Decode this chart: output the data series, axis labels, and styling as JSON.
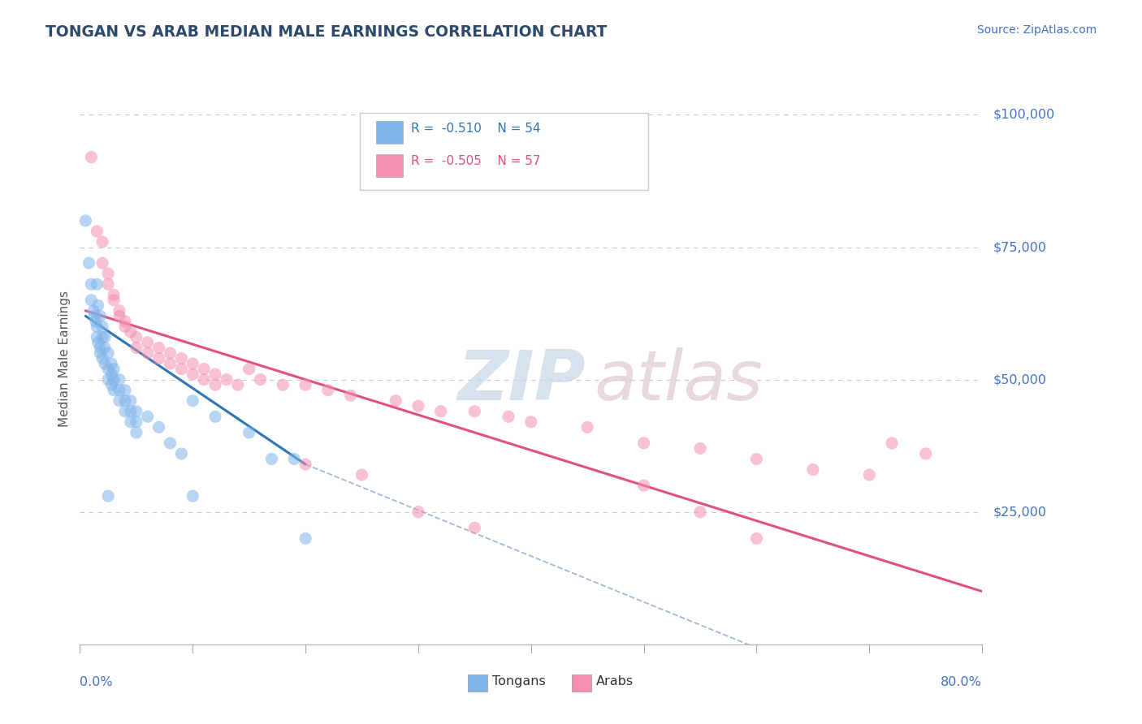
{
  "title": "TONGAN VS ARAB MEDIAN MALE EARNINGS CORRELATION CHART",
  "source_text": "Source: ZipAtlas.com",
  "ylabel": "Median Male Earnings",
  "yticks": [
    0,
    25000,
    50000,
    75000,
    100000
  ],
  "ytick_labels": [
    "",
    "$25,000",
    "$50,000",
    "$75,000",
    "$100,000"
  ],
  "xmin": 0.0,
  "xmax": 0.8,
  "ymin": 0,
  "ymax": 108000,
  "tongan_color": "#7eb4ea",
  "arab_color": "#f48fb1",
  "tongan_line_color": "#2e75b6",
  "arab_line_color": "#e05080",
  "dashed_line_color": "#a0b8d8",
  "title_color": "#2e4a6b",
  "axis_label_color": "#4472c4",
  "source_color": "#4472c4",
  "background_color": "#ffffff",
  "grid_color": "#cccccc",
  "tongan_scatter": [
    [
      0.005,
      80000
    ],
    [
      0.008,
      72000
    ],
    [
      0.01,
      68000
    ],
    [
      0.01,
      65000
    ],
    [
      0.012,
      63000
    ],
    [
      0.013,
      62000
    ],
    [
      0.014,
      61000
    ],
    [
      0.015,
      68000
    ],
    [
      0.015,
      60000
    ],
    [
      0.015,
      58000
    ],
    [
      0.016,
      64000
    ],
    [
      0.016,
      57000
    ],
    [
      0.018,
      62000
    ],
    [
      0.018,
      56000
    ],
    [
      0.018,
      55000
    ],
    [
      0.02,
      60000
    ],
    [
      0.02,
      58000
    ],
    [
      0.02,
      54000
    ],
    [
      0.022,
      58000
    ],
    [
      0.022,
      56000
    ],
    [
      0.022,
      53000
    ],
    [
      0.025,
      55000
    ],
    [
      0.025,
      52000
    ],
    [
      0.025,
      50000
    ],
    [
      0.028,
      53000
    ],
    [
      0.028,
      51000
    ],
    [
      0.028,
      49000
    ],
    [
      0.03,
      52000
    ],
    [
      0.03,
      50000
    ],
    [
      0.03,
      48000
    ],
    [
      0.035,
      50000
    ],
    [
      0.035,
      48000
    ],
    [
      0.035,
      46000
    ],
    [
      0.04,
      48000
    ],
    [
      0.04,
      46000
    ],
    [
      0.04,
      44000
    ],
    [
      0.045,
      46000
    ],
    [
      0.045,
      44000
    ],
    [
      0.045,
      42000
    ],
    [
      0.05,
      44000
    ],
    [
      0.05,
      42000
    ],
    [
      0.05,
      40000
    ],
    [
      0.06,
      43000
    ],
    [
      0.07,
      41000
    ],
    [
      0.08,
      38000
    ],
    [
      0.09,
      36000
    ],
    [
      0.1,
      46000
    ],
    [
      0.12,
      43000
    ],
    [
      0.15,
      40000
    ],
    [
      0.025,
      28000
    ],
    [
      0.1,
      28000
    ],
    [
      0.17,
      35000
    ],
    [
      0.19,
      35000
    ],
    [
      0.2,
      20000
    ]
  ],
  "arab_scatter": [
    [
      0.01,
      92000
    ],
    [
      0.015,
      78000
    ],
    [
      0.02,
      76000
    ],
    [
      0.02,
      72000
    ],
    [
      0.025,
      70000
    ],
    [
      0.025,
      68000
    ],
    [
      0.03,
      66000
    ],
    [
      0.03,
      65000
    ],
    [
      0.035,
      63000
    ],
    [
      0.035,
      62000
    ],
    [
      0.04,
      61000
    ],
    [
      0.04,
      60000
    ],
    [
      0.045,
      59000
    ],
    [
      0.05,
      58000
    ],
    [
      0.05,
      56000
    ],
    [
      0.06,
      57000
    ],
    [
      0.06,
      55000
    ],
    [
      0.07,
      56000
    ],
    [
      0.07,
      54000
    ],
    [
      0.08,
      55000
    ],
    [
      0.08,
      53000
    ],
    [
      0.09,
      54000
    ],
    [
      0.09,
      52000
    ],
    [
      0.1,
      53000
    ],
    [
      0.1,
      51000
    ],
    [
      0.11,
      52000
    ],
    [
      0.11,
      50000
    ],
    [
      0.12,
      51000
    ],
    [
      0.12,
      49000
    ],
    [
      0.13,
      50000
    ],
    [
      0.14,
      49000
    ],
    [
      0.15,
      52000
    ],
    [
      0.16,
      50000
    ],
    [
      0.18,
      49000
    ],
    [
      0.2,
      49000
    ],
    [
      0.22,
      48000
    ],
    [
      0.24,
      47000
    ],
    [
      0.28,
      46000
    ],
    [
      0.3,
      45000
    ],
    [
      0.32,
      44000
    ],
    [
      0.35,
      44000
    ],
    [
      0.38,
      43000
    ],
    [
      0.4,
      42000
    ],
    [
      0.45,
      41000
    ],
    [
      0.5,
      38000
    ],
    [
      0.55,
      37000
    ],
    [
      0.6,
      35000
    ],
    [
      0.65,
      33000
    ],
    [
      0.7,
      32000
    ],
    [
      0.72,
      38000
    ],
    [
      0.75,
      36000
    ],
    [
      0.2,
      34000
    ],
    [
      0.25,
      32000
    ],
    [
      0.3,
      25000
    ],
    [
      0.35,
      22000
    ],
    [
      0.5,
      30000
    ],
    [
      0.55,
      25000
    ],
    [
      0.6,
      20000
    ]
  ],
  "tongan_line_x": [
    0.005,
    0.2
  ],
  "tongan_line_y": [
    62000,
    34000
  ],
  "arab_line_x": [
    0.005,
    0.8
  ],
  "arab_line_y": [
    63000,
    10000
  ],
  "dashed_line_x": [
    0.2,
    0.65
  ],
  "dashed_line_y": [
    34000,
    -5000
  ]
}
